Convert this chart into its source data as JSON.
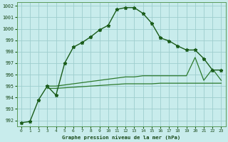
{
  "title": "Graphe pression niveau de la mer (hPa)",
  "yticks": [
    992,
    993,
    994,
    995,
    996,
    997,
    998,
    999,
    1000,
    1001,
    1002
  ],
  "xticks": [
    0,
    1,
    2,
    3,
    4,
    5,
    6,
    7,
    8,
    9,
    10,
    11,
    12,
    13,
    14,
    15,
    16,
    17,
    18,
    19,
    20,
    21,
    22,
    23
  ],
  "bg_color": "#c8ecec",
  "grid_color": "#9ecece",
  "line_color_main": "#1a5c1a",
  "line_color_flat": "#2d7a2d",
  "curve1_x": [
    0,
    1,
    2,
    3,
    4,
    5,
    6,
    7,
    8,
    9,
    10,
    11,
    12,
    13,
    14,
    15,
    16,
    17,
    18,
    19,
    20,
    21,
    22,
    23
  ],
  "curve1_y": [
    991.8,
    991.9,
    993.8,
    995.0,
    994.2,
    997.0,
    998.4,
    998.8,
    999.3,
    999.9,
    1000.3,
    1001.7,
    1001.85,
    1001.85,
    1001.35,
    1000.5,
    999.2,
    998.95,
    998.5,
    998.15,
    998.15,
    997.4,
    996.4,
    996.4
  ],
  "curve2_x": [
    3,
    4,
    5,
    6,
    7,
    8,
    9,
    10,
    11,
    12,
    13,
    14,
    15,
    16,
    17,
    18,
    19,
    20,
    21,
    22,
    23
  ],
  "curve2_y": [
    995.0,
    995.0,
    995.1,
    995.2,
    995.3,
    995.4,
    995.5,
    995.6,
    995.7,
    995.8,
    995.8,
    995.9,
    995.9,
    995.9,
    995.9,
    995.9,
    995.9,
    997.5,
    995.5,
    996.5,
    995.5
  ],
  "curve3_x": [
    3,
    4,
    5,
    6,
    7,
    8,
    9,
    10,
    11,
    12,
    13,
    14,
    15,
    16,
    17,
    18,
    19,
    20,
    21,
    22,
    23
  ],
  "curve3_y": [
    994.8,
    994.8,
    994.85,
    994.9,
    994.95,
    995.0,
    995.05,
    995.1,
    995.15,
    995.2,
    995.2,
    995.2,
    995.2,
    995.25,
    995.25,
    995.25,
    995.25,
    995.25,
    995.25,
    995.25,
    995.25
  ],
  "xlim": [
    -0.5,
    23.5
  ],
  "ylim": [
    991.5,
    1002.3
  ]
}
